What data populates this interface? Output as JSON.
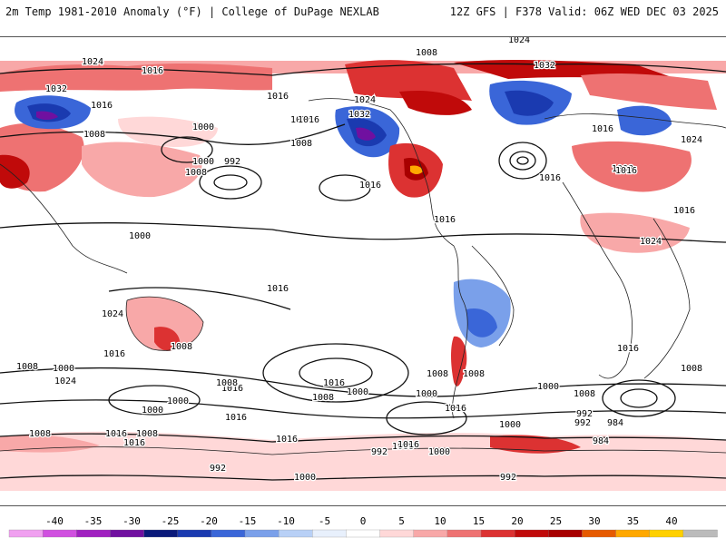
{
  "header": {
    "title_left": "2m Temp 1981-2010 Anomaly (°F) | College of DuPage NEXLAB",
    "title_right": "12Z GFS | F378 Valid: 06Z WED DEC 03 2025"
  },
  "map": {
    "projection": "global equirectangular",
    "variable": "2m temperature anomaly (°F)",
    "contour_variable": "mean sea level pressure (mb)",
    "isobar_labels": [
      {
        "text": "1032",
        "region": "north-atlantic-top"
      },
      {
        "text": "1024",
        "region": "greenland-top"
      },
      {
        "text": "1024",
        "region": "greenland"
      },
      {
        "text": "1032",
        "region": "greenland-center"
      },
      {
        "text": "1008",
        "region": "europe-north"
      },
      {
        "text": "1024",
        "region": "east-asia-north"
      },
      {
        "text": "1032",
        "region": "siberia"
      },
      {
        "text": "1016",
        "region": "east-asia"
      },
      {
        "text": "1016",
        "region": "north-pacific-west"
      },
      {
        "text": "1008",
        "region": "north-pacific-west"
      },
      {
        "text": "1000",
        "region": "north-pacific"
      },
      {
        "text": "1000",
        "region": "north-pacific"
      },
      {
        "text": "992",
        "region": "north-pacific"
      },
      {
        "text": "1008",
        "region": "north-pacific"
      },
      {
        "text": "1008",
        "region": "north-pacific-east"
      },
      {
        "text": "1016",
        "region": "alaska"
      },
      {
        "text": "1032",
        "region": "canada"
      },
      {
        "text": "1024",
        "region": "canada-arctic"
      },
      {
        "text": "1016",
        "region": "arctic-canada"
      },
      {
        "text": "1016",
        "region": "arctic"
      },
      {
        "text": "1016",
        "region": "hudson-bay"
      },
      {
        "text": "1016",
        "region": "us-central"
      },
      {
        "text": "1016",
        "region": "us-east"
      },
      {
        "text": "1008",
        "region": "north-atlantic"
      },
      {
        "text": "1016",
        "region": "north-atlantic"
      },
      {
        "text": "1024",
        "region": "west-asia"
      },
      {
        "text": "1016",
        "region": "india"
      },
      {
        "text": "1016",
        "region": "central-asia"
      },
      {
        "text": "1024",
        "region": "middle-east"
      },
      {
        "text": "1000",
        "region": "russia"
      },
      {
        "text": "1016",
        "region": "africa-north"
      },
      {
        "text": "1024",
        "region": "east-asia"
      },
      {
        "text": "1016",
        "region": "east-asia"
      },
      {
        "text": "1008",
        "region": "southeast-asia"
      },
      {
        "text": "1008",
        "region": "indonesia"
      },
      {
        "text": "1008",
        "region": "australia"
      },
      {
        "text": "1016",
        "region": "australia"
      },
      {
        "text": "1008",
        "region": "australia-south"
      },
      {
        "text": "1016",
        "region": "south-pacific-west"
      },
      {
        "text": "1016",
        "region": "south-atlantic"
      },
      {
        "text": "1008",
        "region": "south-america"
      },
      {
        "text": "1016",
        "region": "south-america"
      },
      {
        "text": "1016",
        "region": "south-africa"
      },
      {
        "text": "1016",
        "region": "south-africa-east"
      },
      {
        "text": "1000",
        "region": "southern-ocean-indian"
      },
      {
        "text": "1008",
        "region": "southern-ocean-indian"
      },
      {
        "text": "1024",
        "region": "south-pacific-high"
      },
      {
        "text": "1000",
        "region": "southern-ocean-pacific"
      },
      {
        "text": "1008",
        "region": "southern-ocean-pacific"
      },
      {
        "text": "992",
        "region": "southern-ocean-pacific"
      },
      {
        "text": "992",
        "region": "southern-ocean-pacific"
      },
      {
        "text": "984",
        "region": "southern-ocean-pacific"
      },
      {
        "text": "1000",
        "region": "southern-ocean-indian-west"
      },
      {
        "text": "1008",
        "region": "southern-ocean-indian-west"
      },
      {
        "text": "992",
        "region": "southern-ocean-atlantic"
      },
      {
        "text": "1000",
        "region": "southern-ocean-atlantic"
      },
      {
        "text": "984",
        "region": "southern-ocean-atlantic"
      },
      {
        "text": "992",
        "region": "southern-ocean-atlantic"
      },
      {
        "text": "1000",
        "region": "southern-ocean-atlantic"
      },
      {
        "text": "992",
        "region": "southern-ocean-indian-east"
      },
      {
        "text": "1000",
        "region": "southern-ocean-indian-east"
      },
      {
        "text": "1008",
        "region": "southern-ocean-indian-east"
      },
      {
        "text": "1000",
        "region": "antarctica-coast"
      },
      {
        "text": "1016",
        "region": "antarctica-coast"
      },
      {
        "text": "1000",
        "region": "antarctica"
      },
      {
        "text": "1008",
        "region": "antarctica"
      },
      {
        "text": "1008",
        "region": "antarctica-coast-east"
      },
      {
        "text": "1000",
        "region": "antarctica-coast-east"
      },
      {
        "text": "1016",
        "region": "antarctica-interior"
      },
      {
        "text": "1016",
        "region": "antarctica-interior-east"
      },
      {
        "text": "992",
        "region": "antarctica-pacific"
      }
    ]
  },
  "colorbar": {
    "labels": [
      "-40",
      "-35",
      "-30",
      "-25",
      "-20",
      "-15",
      "-10",
      "-5",
      "0",
      "5",
      "10",
      "15",
      "20",
      "25",
      "30",
      "35",
      "40"
    ],
    "colors": [
      "#f0a0f0",
      "#d050e0",
      "#a020c0",
      "#7010a0",
      "#0a1a7a",
      "#1a3ab0",
      "#3a66d8",
      "#7aa0ea",
      "#b8d0f6",
      "#e8f0fc",
      "#ffffff",
      "#ffd8d8",
      "#f8a8a8",
      "#ee7272",
      "#dc3232",
      "#c00a0a",
      "#a80000",
      "#e65a00",
      "#ffa800",
      "#ffd000",
      "#bbbbbb"
    ]
  }
}
